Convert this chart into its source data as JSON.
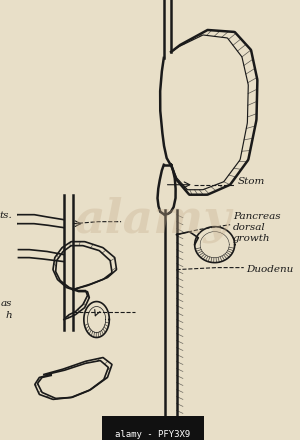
{
  "background_color": "#e8dfc8",
  "line_color": "#1a1a1a",
  "watermark_color": "#c8b090",
  "watermark_text": "alamy",
  "watermark_alpha": 0.35,
  "bottom_text": "alamy - PFY3X9",
  "bottom_bg": "#111111",
  "bottom_text_color": "#ffffff",
  "font_size_label": 7.5,
  "dpi": 100,
  "figsize": [
    3.0,
    4.4
  ],
  "labels": {
    "stom": "Stom",
    "pancreas": "Pancreas\ndorsal\ngrowth",
    "duodenum": "Duodenu",
    "ts": "ts.",
    "as_h": "as\nh"
  }
}
